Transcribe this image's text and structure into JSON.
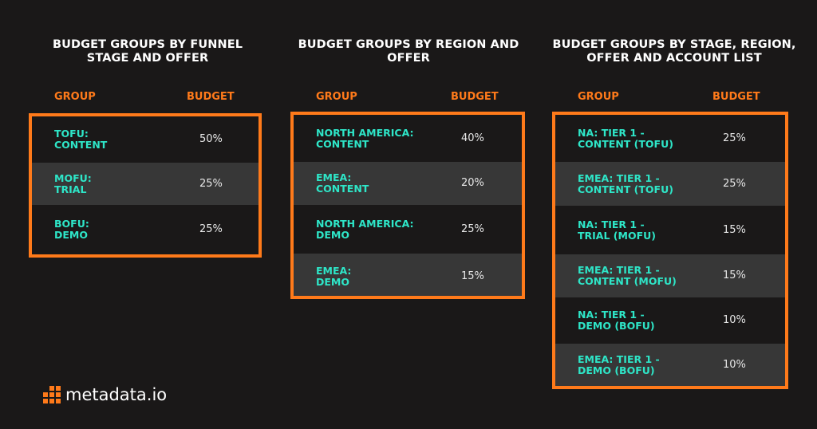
{
  "panels": [
    {
      "title": "Budget groups by funnel stage and offer",
      "col_group": "GROUP",
      "col_budget": "BUDGET",
      "rows": [
        {
          "group": "TOFU:\nCONTENT",
          "budget": "50%"
        },
        {
          "group": "MOFU:\nTRIAL",
          "budget": "25%"
        },
        {
          "group": "BOFU:\nDEMO",
          "budget": "25%"
        }
      ]
    },
    {
      "title": "Budget groups by region and offer",
      "col_group": "GROUP",
      "col_budget": "BUDGET",
      "rows": [
        {
          "group": "NORTH AMERICA:\nCONTENT",
          "budget": "40%"
        },
        {
          "group": "EMEA:\nCONTENT",
          "budget": "20%"
        },
        {
          "group": "NORTH AMERICA:\nDEMO",
          "budget": "25%"
        },
        {
          "group": "EMEA:\nDEMO",
          "budget": "15%"
        }
      ]
    },
    {
      "title": "Budget groups by stage, region, offer and account list",
      "col_group": "GROUP",
      "col_budget": "BUDGET",
      "rows": [
        {
          "group": "NA: TIER 1 -\nCONTENT (TOFU)",
          "budget": "25%"
        },
        {
          "group": "EMEA: TIER 1 -\nCONTENT (TOFU)",
          "budget": "25%"
        },
        {
          "group": "NA: TIER 1 -\nTRIAL (MOFU)",
          "budget": "15%"
        },
        {
          "group": "EMEA: TIER 1 -\nCONTENT (MOFU)",
          "budget": "15%"
        },
        {
          "group": "NA: TIER 1 -\nDEMO (BOFU)",
          "budget": "10%"
        },
        {
          "group": "EMEA: TIER 1 -\nDEMO (BOFU)",
          "budget": "10%"
        }
      ]
    }
  ],
  "logo": {
    "text": "metadata.io",
    "icon": "grid-logo-icon",
    "color": "#ff7a1a"
  },
  "colors": {
    "background": "#1a1818",
    "accent": "#ff7a1a",
    "label": "#2ee6c8",
    "alt_row": "#373737"
  }
}
